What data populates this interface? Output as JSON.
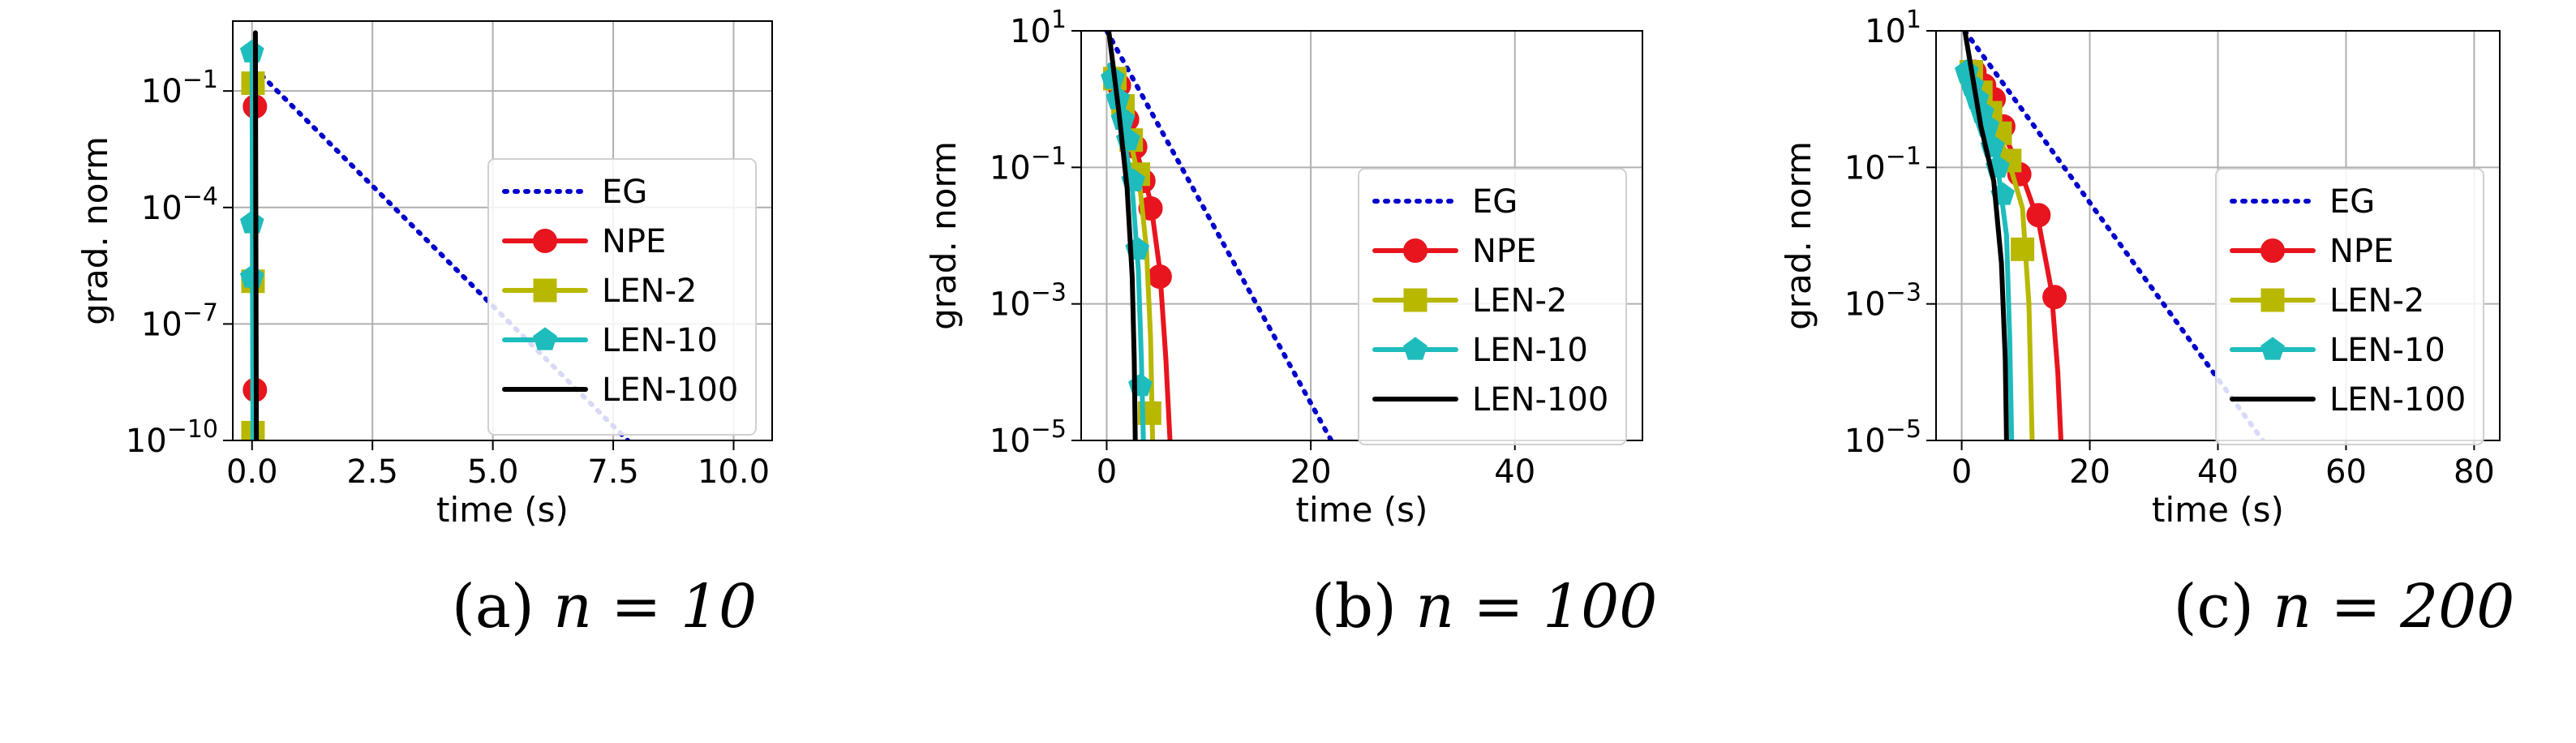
{
  "chart_data": [
    {
      "type": "line",
      "caption_label": "(a)",
      "caption_math": "n = 10",
      "xlabel": "time (s)",
      "ylabel": "grad. norm",
      "xlim": [
        -0.4,
        10.8
      ],
      "ylim_exponents": [
        -10,
        0.8
      ],
      "yscale": "log",
      "grid": true,
      "legend_position": "right",
      "x_ticks": [
        0.0,
        2.5,
        5.0,
        7.5,
        10.0
      ],
      "x_tick_labels": [
        "0.0",
        "2.5",
        "5.0",
        "7.5",
        "10.0"
      ],
      "y_tick_exponents": [
        -1,
        -4,
        -7,
        -10
      ],
      "series": [
        {
          "name": "EG",
          "color": "#0000cc",
          "style": "dotted",
          "marker": "none",
          "x": [
            0.2,
            7.8
          ],
          "y_exp": [
            -0.6,
            -10
          ]
        },
        {
          "name": "NPE",
          "color": "#e8141e",
          "style": "solid",
          "marker": "circle",
          "x": [
            0.06,
            0.06,
            0.07
          ],
          "y_exp": [
            -0.5,
            -9,
            -10
          ],
          "marker_y_exp": [
            -1.4,
            -8.7
          ]
        },
        {
          "name": "LEN-2",
          "color": "#b8b800",
          "style": "solid",
          "marker": "square",
          "x": [
            0.02,
            0.02,
            0.03
          ],
          "y_exp": [
            -0.4,
            -9,
            -10
          ],
          "marker_y_exp": [
            -0.8,
            -5.9,
            -9.8
          ]
        },
        {
          "name": "LEN-10",
          "color": "#1ebcbc",
          "style": "solid",
          "marker": "pentagon",
          "x": [
            0.0,
            0.01,
            0.02
          ],
          "y_exp": [
            0.0,
            -6,
            -10
          ],
          "marker_y_exp": [
            0.0,
            -4.4,
            -5.8
          ]
        },
        {
          "name": "LEN-100",
          "color": "#000000",
          "style": "solid",
          "marker": "none",
          "x": [
            0.07,
            0.08,
            0.09
          ],
          "y_exp": [
            0.5,
            -5,
            -10
          ]
        }
      ]
    },
    {
      "type": "line",
      "caption_label": "(b)",
      "caption_math": "n = 100",
      "xlabel": "time (s)",
      "ylabel": "grad. norm",
      "xlim": [
        -2.5,
        52.5
      ],
      "ylim_exponents": [
        -5,
        1
      ],
      "yscale": "log",
      "grid": true,
      "legend_position": "right",
      "x_ticks": [
        0,
        20,
        40
      ],
      "x_tick_labels": [
        "0",
        "20",
        "40"
      ],
      "y_tick_exponents": [
        1,
        -1,
        -3,
        -5
      ],
      "series": [
        {
          "name": "EG",
          "color": "#0000cc",
          "style": "dotted",
          "marker": "none",
          "x": [
            0.0,
            22.0
          ],
          "y_exp": [
            1.0,
            -5.0
          ]
        },
        {
          "name": "NPE",
          "color": "#e8141e",
          "style": "solid",
          "marker": "circle",
          "x": [
            0.5,
            1.5,
            3.0,
            4.3,
            5.2,
            5.8,
            6.2
          ],
          "y_exp": [
            0.5,
            0.0,
            -0.8,
            -1.5,
            -2.5,
            -3.8,
            -5.0
          ],
          "marker_x": [
            1.2,
            2.0,
            2.8,
            3.6,
            4.3,
            5.2
          ],
          "marker_y_exp": [
            0.2,
            -0.3,
            -0.7,
            -1.2,
            -1.6,
            -2.6
          ]
        },
        {
          "name": "LEN-2",
          "color": "#b8b800",
          "style": "solid",
          "marker": "square",
          "x": [
            0.4,
            2.0,
            3.2,
            3.9,
            4.3,
            4.5
          ],
          "y_exp": [
            0.4,
            -0.4,
            -1.2,
            -2.2,
            -3.5,
            -5.0
          ],
          "marker_x": [
            0.8,
            1.6,
            2.4,
            3.1,
            4.2
          ],
          "marker_y_exp": [
            0.3,
            -0.1,
            -0.6,
            -1.1,
            -4.6
          ]
        },
        {
          "name": "LEN-10",
          "color": "#1ebcbc",
          "style": "solid",
          "marker": "pentagon",
          "x": [
            0.3,
            1.4,
            2.5,
            3.1,
            3.4,
            3.6
          ],
          "y_exp": [
            0.5,
            -0.3,
            -1.3,
            -2.5,
            -3.8,
            -5.0
          ],
          "marker_x": [
            0.6,
            1.1,
            1.6,
            2.1,
            2.6,
            3.0,
            3.3
          ],
          "marker_y_exp": [
            0.3,
            0.0,
            -0.3,
            -0.6,
            -1.2,
            -2.2,
            -4.2
          ]
        },
        {
          "name": "LEN-100",
          "color": "#000000",
          "style": "solid",
          "marker": "none",
          "x": [
            0.2,
            1.2,
            2.0,
            2.5,
            2.7,
            2.8
          ],
          "y_exp": [
            1.0,
            -0.2,
            -1.3,
            -2.6,
            -3.8,
            -5.0
          ]
        }
      ]
    },
    {
      "type": "line",
      "caption_label": "(c)",
      "caption_math": "n = 200",
      "xlabel": "time (s)",
      "ylabel": "grad. norm",
      "xlim": [
        -4,
        84
      ],
      "ylim_exponents": [
        -5,
        1
      ],
      "yscale": "log",
      "grid": true,
      "legend_position": "right",
      "x_ticks": [
        0,
        20,
        40,
        60,
        80
      ],
      "x_tick_labels": [
        "0",
        "20",
        "40",
        "60",
        "80"
      ],
      "y_tick_exponents": [
        1,
        -1,
        -3,
        -5
      ],
      "series": [
        {
          "name": "EG",
          "color": "#0000cc",
          "style": "dotted",
          "marker": "none",
          "x": [
            0.5,
            47.0
          ],
          "y_exp": [
            1.0,
            -5.0
          ]
        },
        {
          "name": "NPE",
          "color": "#e8141e",
          "style": "solid",
          "marker": "circle",
          "x": [
            1.0,
            4.0,
            9.0,
            12.0,
            14.0,
            15.0,
            15.5
          ],
          "y_exp": [
            0.5,
            0.0,
            -1.0,
            -1.8,
            -2.8,
            -4.0,
            -5.0
          ],
          "marker_x": [
            2.0,
            3.5,
            5.0,
            6.5,
            9.0,
            12.0,
            14.5
          ],
          "marker_y_exp": [
            0.4,
            0.2,
            0.0,
            -0.4,
            -1.1,
            -1.7,
            -2.9
          ]
        },
        {
          "name": "LEN-2",
          "color": "#b8b800",
          "style": "solid",
          "marker": "square",
          "x": [
            0.8,
            4.0,
            7.0,
            9.5,
            10.5,
            11.0
          ],
          "y_exp": [
            0.5,
            -0.2,
            -0.8,
            -1.6,
            -3.0,
            -5.0
          ],
          "marker_x": [
            1.5,
            3.0,
            4.5,
            6.0,
            7.5,
            9.5
          ],
          "marker_y_exp": [
            0.4,
            0.1,
            -0.2,
            -0.5,
            -0.9,
            -2.2
          ]
        },
        {
          "name": "LEN-10",
          "color": "#1ebcbc",
          "style": "solid",
          "marker": "pentagon",
          "x": [
            0.5,
            3.0,
            5.5,
            7.0,
            7.5,
            7.8
          ],
          "y_exp": [
            0.5,
            -0.3,
            -0.9,
            -2.0,
            -3.5,
            -5.0
          ],
          "marker_x": [
            0.8,
            1.6,
            2.4,
            3.2,
            4.0,
            4.8,
            5.6,
            6.4
          ],
          "marker_y_exp": [
            0.4,
            0.2,
            0.0,
            -0.2,
            -0.4,
            -0.7,
            -1.0,
            -1.4
          ]
        },
        {
          "name": "LEN-100",
          "color": "#000000",
          "style": "solid",
          "marker": "none",
          "x": [
            0.5,
            3.0,
            5.0,
            6.2,
            6.8,
            7.0
          ],
          "y_exp": [
            1.0,
            -0.4,
            -1.2,
            -2.4,
            -3.8,
            -5.0
          ]
        }
      ]
    }
  ]
}
